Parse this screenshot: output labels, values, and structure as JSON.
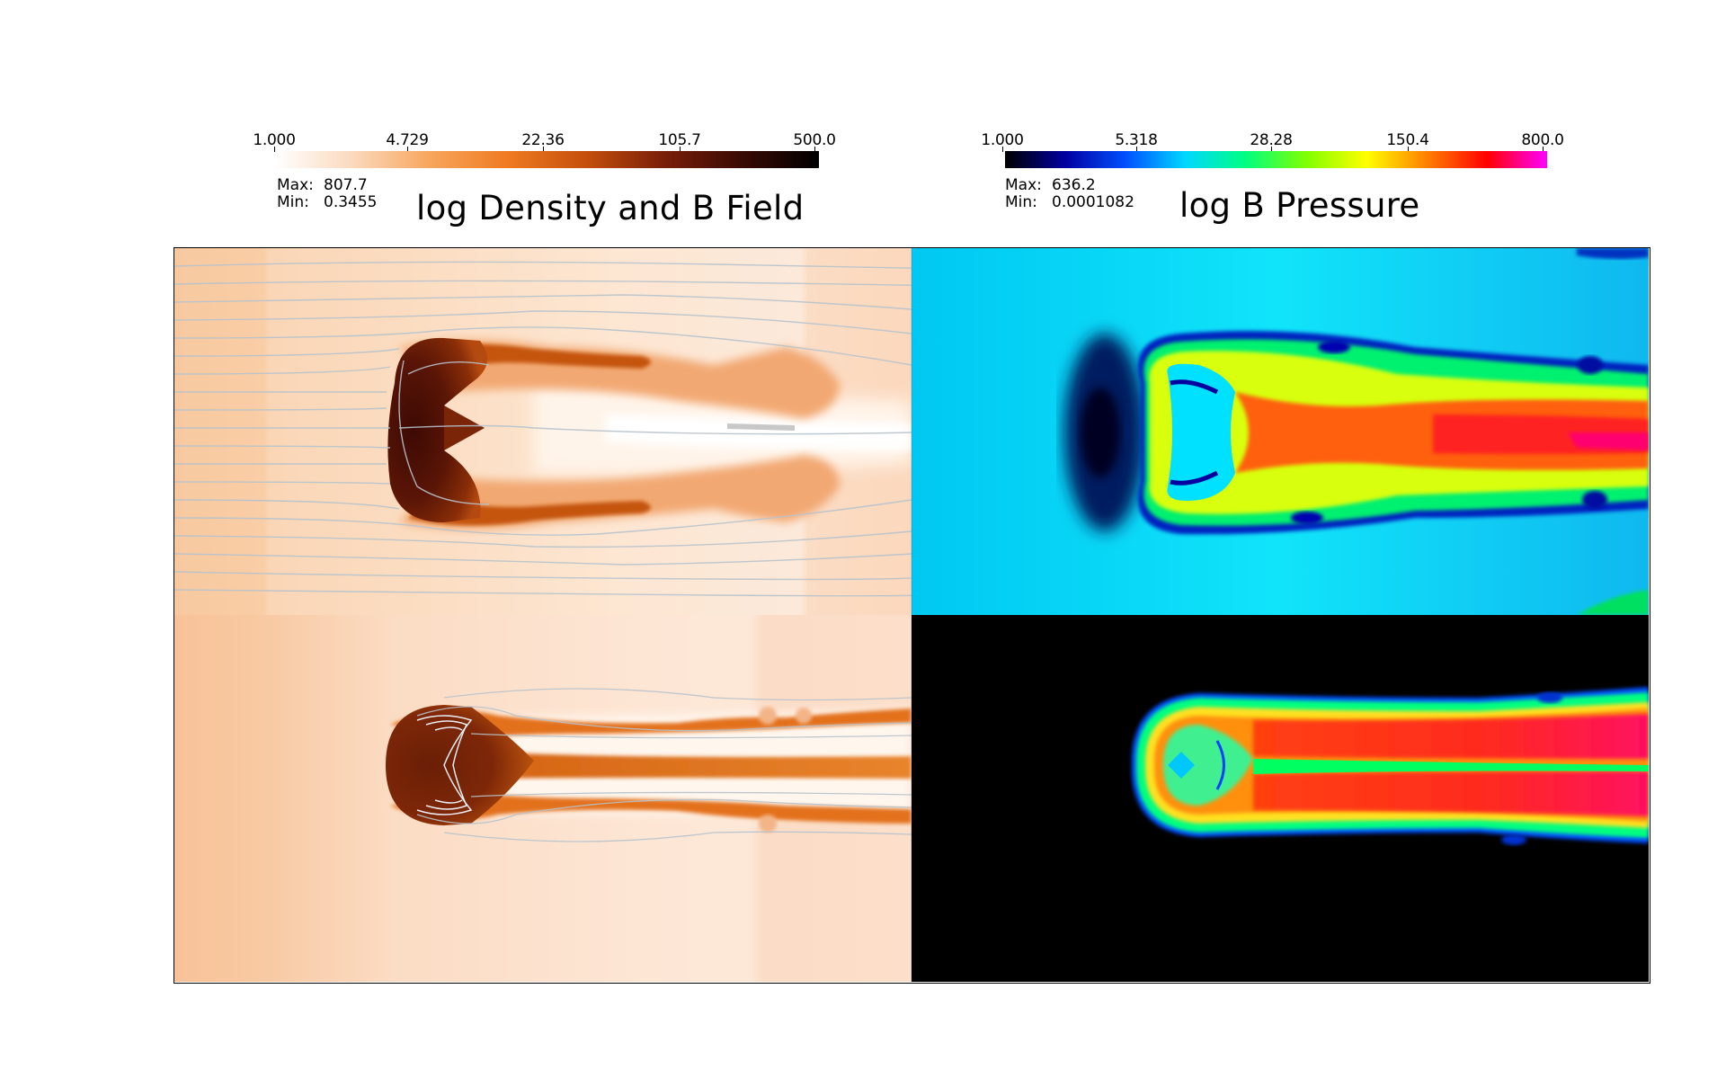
{
  "left_panel": {
    "title": "log Density and B Field",
    "max_label": "Max:",
    "max_value": "807.7",
    "min_label": "Min:",
    "min_value": "0.3455",
    "colorbar_ticks": [
      "1.000",
      "4.729",
      "22.36",
      "105.7",
      "500.0"
    ],
    "colormap": [
      "#ffffff",
      "#fbd9bd",
      "#f7a55c",
      "#ef7a20",
      "#c54f0c",
      "#7a1f08",
      "#3a0a04",
      "#000000"
    ]
  },
  "right_panel": {
    "title": "log B Pressure",
    "max_label": "Max:",
    "max_value": "636.2",
    "min_label": "Min:",
    "min_value": "0.0001082",
    "colorbar_ticks": [
      "1.000",
      "5.318",
      "28.28",
      "150.4",
      "800.0"
    ],
    "colormap": [
      "#000000",
      "#0000a0",
      "#0050ff",
      "#00d8ff",
      "#00ff80",
      "#80ff00",
      "#ffff00",
      "#ff8000",
      "#ff0000",
      "#ff00ff"
    ]
  },
  "background_colors": {
    "density_bg": "#f9cfa8",
    "bpressure_top_bg": "#00c8f0",
    "bpressure_bottom_bg": "#000000"
  }
}
